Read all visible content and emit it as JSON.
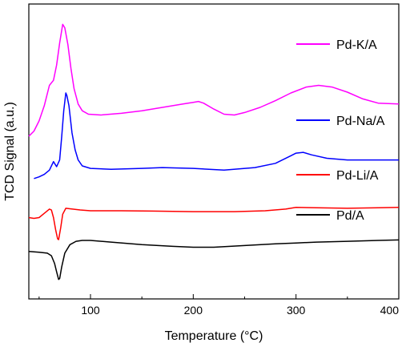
{
  "chart_data": {
    "type": "line",
    "title": "",
    "xlabel": "Temperature (°C)",
    "ylabel": "TCD Signal (a.u.)",
    "xlim": [
      40,
      400
    ],
    "x_ticks": [
      100,
      200,
      300,
      400
    ],
    "y_ticks_labeled": false,
    "grid": false,
    "legend_placement": "right, inline labels next to each curve",
    "series": [
      {
        "name": "Pd-K/A",
        "color": "#ff00ff",
        "points": [
          [
            40,
            8.0
          ],
          [
            45,
            8.3
          ],
          [
            50,
            8.9
          ],
          [
            55,
            9.8
          ],
          [
            60,
            11.0
          ],
          [
            64,
            11.3
          ],
          [
            67,
            12.2
          ],
          [
            70,
            13.5
          ],
          [
            73,
            14.6
          ],
          [
            75,
            14.4
          ],
          [
            78,
            13.4
          ],
          [
            81,
            12.0
          ],
          [
            84,
            10.8
          ],
          [
            88,
            9.9
          ],
          [
            92,
            9.5
          ],
          [
            98,
            9.3
          ],
          [
            110,
            9.25
          ],
          [
            130,
            9.35
          ],
          [
            150,
            9.5
          ],
          [
            170,
            9.7
          ],
          [
            190,
            9.9
          ],
          [
            200,
            10.0
          ],
          [
            205,
            10.05
          ],
          [
            210,
            9.95
          ],
          [
            220,
            9.6
          ],
          [
            230,
            9.3
          ],
          [
            240,
            9.25
          ],
          [
            250,
            9.4
          ],
          [
            265,
            9.7
          ],
          [
            280,
            10.1
          ],
          [
            295,
            10.55
          ],
          [
            310,
            10.9
          ],
          [
            322,
            11.0
          ],
          [
            335,
            10.9
          ],
          [
            350,
            10.6
          ],
          [
            365,
            10.2
          ],
          [
            380,
            9.95
          ],
          [
            400,
            9.9
          ]
        ]
      },
      {
        "name": "Pd-Na/A",
        "color": "#0000ff",
        "points": [
          [
            45,
            5.5
          ],
          [
            50,
            5.6
          ],
          [
            55,
            5.75
          ],
          [
            60,
            6.0
          ],
          [
            64,
            6.5
          ],
          [
            67,
            6.2
          ],
          [
            70,
            6.6
          ],
          [
            72,
            8.0
          ],
          [
            74,
            9.5
          ],
          [
            76,
            10.55
          ],
          [
            77,
            10.4
          ],
          [
            79,
            9.8
          ],
          [
            82,
            8.2
          ],
          [
            85,
            7.2
          ],
          [
            88,
            6.6
          ],
          [
            92,
            6.25
          ],
          [
            100,
            6.1
          ],
          [
            120,
            6.05
          ],
          [
            150,
            6.1
          ],
          [
            170,
            6.15
          ],
          [
            200,
            6.1
          ],
          [
            230,
            6.0
          ],
          [
            260,
            6.15
          ],
          [
            280,
            6.4
          ],
          [
            295,
            6.85
          ],
          [
            300,
            7.0
          ],
          [
            307,
            7.05
          ],
          [
            315,
            6.9
          ],
          [
            330,
            6.7
          ],
          [
            350,
            6.6
          ],
          [
            380,
            6.6
          ],
          [
            400,
            6.6
          ]
        ]
      },
      {
        "name": "Pd-Li/A",
        "color": "#ff0000",
        "points": [
          [
            40,
            3.2
          ],
          [
            45,
            3.15
          ],
          [
            50,
            3.2
          ],
          [
            55,
            3.45
          ],
          [
            60,
            3.7
          ],
          [
            62,
            3.65
          ],
          [
            64,
            3.2
          ],
          [
            66,
            2.5
          ],
          [
            68,
            1.95
          ],
          [
            69,
            1.9
          ],
          [
            71,
            2.6
          ],
          [
            73,
            3.4
          ],
          [
            76,
            3.75
          ],
          [
            80,
            3.72
          ],
          [
            90,
            3.65
          ],
          [
            100,
            3.6
          ],
          [
            130,
            3.6
          ],
          [
            160,
            3.58
          ],
          [
            200,
            3.55
          ],
          [
            240,
            3.55
          ],
          [
            270,
            3.6
          ],
          [
            290,
            3.7
          ],
          [
            300,
            3.8
          ],
          [
            320,
            3.78
          ],
          [
            350,
            3.75
          ],
          [
            380,
            3.78
          ],
          [
            400,
            3.8
          ]
        ]
      },
      {
        "name": "Pd/A",
        "color": "#000000",
        "points": [
          [
            40,
            1.2
          ],
          [
            50,
            1.15
          ],
          [
            58,
            1.1
          ],
          [
            62,
            0.95
          ],
          [
            65,
            0.5
          ],
          [
            67,
            0.0
          ],
          [
            69,
            -0.45
          ],
          [
            70,
            -0.4
          ],
          [
            72,
            0.3
          ],
          [
            75,
            1.1
          ],
          [
            80,
            1.6
          ],
          [
            86,
            1.8
          ],
          [
            92,
            1.85
          ],
          [
            100,
            1.85
          ],
          [
            120,
            1.75
          ],
          [
            150,
            1.6
          ],
          [
            180,
            1.5
          ],
          [
            200,
            1.45
          ],
          [
            220,
            1.45
          ],
          [
            250,
            1.55
          ],
          [
            280,
            1.65
          ],
          [
            300,
            1.7
          ],
          [
            320,
            1.75
          ],
          [
            350,
            1.8
          ],
          [
            380,
            1.85
          ],
          [
            400,
            1.88
          ]
        ]
      }
    ],
    "ylim": [
      -1.6,
      15.8
    ],
    "legend_x": 400
  }
}
